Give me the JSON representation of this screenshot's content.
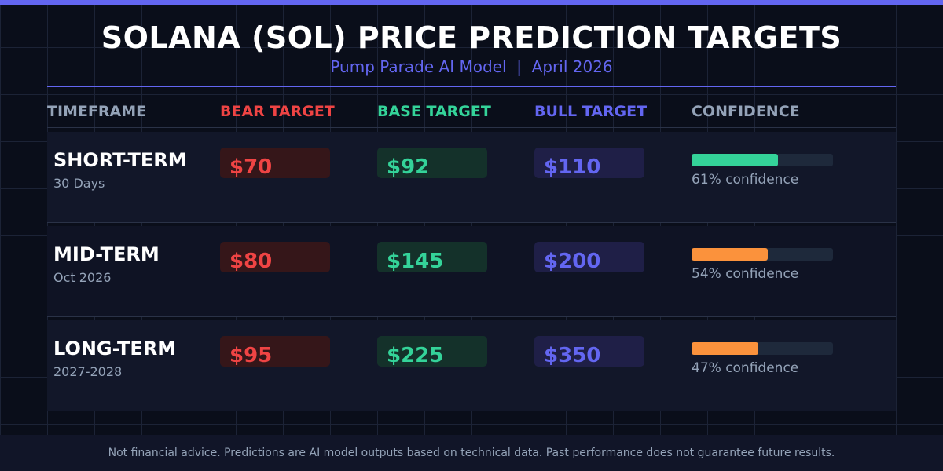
{
  "title": "SOLANA (SOL) PRICE PREDICTION TARGETS",
  "subtitle": "Pump Parade AI Model  |  April 2026",
  "headers": [
    "TIMEFRAME",
    "BEAR TARGET",
    "BASE TARGET",
    "BULL TARGET",
    "CONFIDENCE"
  ],
  "colors": {
    "accent": "#6366f1",
    "bear": "#ef4444",
    "base": "#34d399",
    "bull": "#6366f1",
    "high_conf": "#34d399",
    "mid_conf": "#fb923c"
  },
  "rows": [
    {
      "label": "SHORT-TERM",
      "sub": "30 Days",
      "bear": "$70",
      "base": "$92",
      "bull": "$110",
      "confidence": 61,
      "confidence_text": "61% confidence",
      "bar_color": "#34d399"
    },
    {
      "label": "MID-TERM",
      "sub": "Oct 2026",
      "bear": "$80",
      "base": "$145",
      "bull": "$200",
      "confidence": 54,
      "confidence_text": "54% confidence",
      "bar_color": "#fb923c"
    },
    {
      "label": "LONG-TERM",
      "sub": "2027-2028",
      "bear": "$95",
      "base": "$225",
      "bull": "$350",
      "confidence": 47,
      "confidence_text": "47% confidence",
      "bar_color": "#fb923c"
    }
  ],
  "footer": "Not financial advice. Predictions are AI model outputs based on technical data. Past performance does not guarantee future results."
}
